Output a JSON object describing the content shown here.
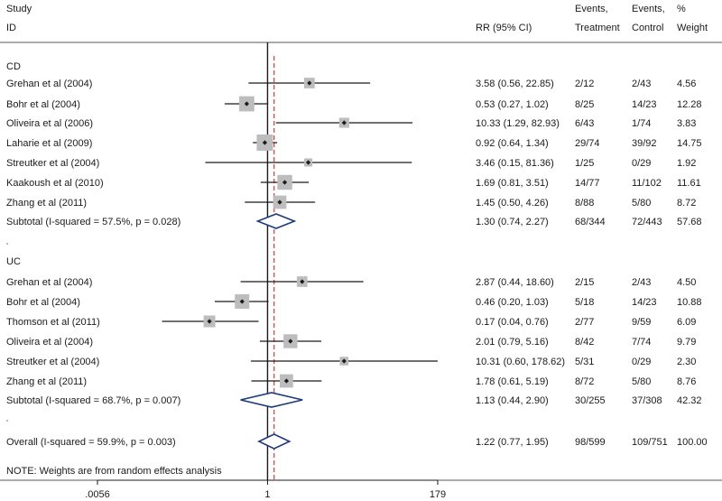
{
  "chart_data": {
    "type": "forest",
    "scale": "log",
    "x_ticks": [
      {
        "value": 0.0056,
        "label": ".0056"
      },
      {
        "value": 1,
        "label": "1"
      },
      {
        "value": 179,
        "label": "179"
      }
    ],
    "null_value": 1,
    "overall_effect": 1.22,
    "header": {
      "study": "Study",
      "id": "ID",
      "rr": "RR (95% CI)",
      "events_treatment_1": "Events,",
      "events_treatment_2": "Treatment",
      "events_control_1": "Events,",
      "events_control_2": "Control",
      "weight_1": "%",
      "weight_2": "Weight"
    },
    "groups": [
      {
        "name": "CD",
        "studies": [
          {
            "label": "Grehan et al (2004)",
            "rr": 3.58,
            "lo": 0.56,
            "hi": 22.85,
            "ci_text": "3.58 (0.56, 22.85)",
            "treatment": "2/12",
            "control": "2/43",
            "weight": 4.56,
            "weight_text": "4.56"
          },
          {
            "label": "Bohr et al (2004)",
            "rr": 0.53,
            "lo": 0.27,
            "hi": 1.02,
            "ci_text": "0.53 (0.27, 1.02)",
            "treatment": "8/25",
            "control": "14/23",
            "weight": 12.28,
            "weight_text": "12.28"
          },
          {
            "label": "Oliveira et al (2006)",
            "rr": 10.33,
            "lo": 1.29,
            "hi": 82.93,
            "ci_text": "10.33 (1.29, 82.93)",
            "treatment": "6/43",
            "control": "1/74",
            "weight": 3.83,
            "weight_text": "3.83"
          },
          {
            "label": "Laharie et al (2009)",
            "rr": 0.92,
            "lo": 0.64,
            "hi": 1.34,
            "ci_text": "0.92 (0.64, 1.34)",
            "treatment": "29/74",
            "control": "39/92",
            "weight": 14.75,
            "weight_text": "14.75"
          },
          {
            "label": "Streutker et al (2004)",
            "rr": 3.46,
            "lo": 0.15,
            "hi": 81.36,
            "ci_text": "3.46 (0.15, 81.36)",
            "treatment": "1/25",
            "control": "0/29",
            "weight": 1.92,
            "weight_text": "1.92"
          },
          {
            "label": "Kaakoush et al (2010)",
            "rr": 1.69,
            "lo": 0.81,
            "hi": 3.51,
            "ci_text": "1.69 (0.81, 3.51)",
            "treatment": "14/77",
            "control": "11/102",
            "weight": 11.61,
            "weight_text": "11.61"
          },
          {
            "label": "Zhang et al (2011)",
            "rr": 1.45,
            "lo": 0.5,
            "hi": 4.26,
            "ci_text": "1.45 (0.50, 4.26)",
            "treatment": "8/88",
            "control": "5/80",
            "weight": 8.72,
            "weight_text": "8.72"
          }
        ],
        "subtotal": {
          "label": "Subtotal  (I-squared = 57.5%, p = 0.028)",
          "rr": 1.3,
          "lo": 0.74,
          "hi": 2.27,
          "ci_text": "1.30 (0.74, 2.27)",
          "treatment": "68/344",
          "control": "72/443",
          "weight_text": "57.68"
        }
      },
      {
        "name": "UC",
        "studies": [
          {
            "label": "Grehan et al (2004)",
            "rr": 2.87,
            "lo": 0.44,
            "hi": 18.6,
            "ci_text": "2.87 (0.44, 18.60)",
            "treatment": "2/15",
            "control": "2/43",
            "weight": 4.5,
            "weight_text": "4.50"
          },
          {
            "label": "Bohr et al (2004)",
            "rr": 0.46,
            "lo": 0.2,
            "hi": 1.03,
            "ci_text": "0.46 (0.20, 1.03)",
            "treatment": "5/18",
            "control": "14/23",
            "weight": 10.88,
            "weight_text": "10.88"
          },
          {
            "label": "Thomson et al (2011)",
            "rr": 0.17,
            "lo": 0.04,
            "hi": 0.76,
            "ci_text": "0.17 (0.04, 0.76)",
            "treatment": "2/77",
            "control": "9/59",
            "weight": 6.09,
            "weight_text": "6.09"
          },
          {
            "label": "Oliveira et al (2004)",
            "rr": 2.01,
            "lo": 0.79,
            "hi": 5.16,
            "ci_text": "2.01 (0.79, 5.16)",
            "treatment": "8/42",
            "control": "7/74",
            "weight": 9.79,
            "weight_text": "9.79"
          },
          {
            "label": "Streutker et al (2004)",
            "rr": 10.31,
            "lo": 0.6,
            "hi": 178.62,
            "ci_text": "10.31 (0.60, 178.62)",
            "treatment": "5/31",
            "control": "0/29",
            "weight": 2.3,
            "weight_text": "2.30"
          },
          {
            "label": "Zhang et al (2011)",
            "rr": 1.78,
            "lo": 0.61,
            "hi": 5.19,
            "ci_text": "1.78 (0.61, 5.19)",
            "treatment": "8/72",
            "control": "5/80",
            "weight": 8.76,
            "weight_text": "8.76"
          }
        ],
        "subtotal": {
          "label": "Subtotal  (I-squared = 68.7%, p = 0.007)",
          "rr": 1.13,
          "lo": 0.44,
          "hi": 2.9,
          "ci_text": "1.13 (0.44, 2.90)",
          "treatment": "30/255",
          "control": "37/308",
          "weight_text": "42.32"
        }
      }
    ],
    "overall": {
      "label": "Overall  (I-squared = 59.9%, p = 0.003)",
      "rr": 1.22,
      "lo": 0.77,
      "hi": 1.95,
      "ci_text": "1.22 (0.77, 1.95)",
      "treatment": "98/599",
      "control": "109/751",
      "weight_text": "100.00"
    },
    "note": "NOTE: Weights are from random effects analysis"
  }
}
